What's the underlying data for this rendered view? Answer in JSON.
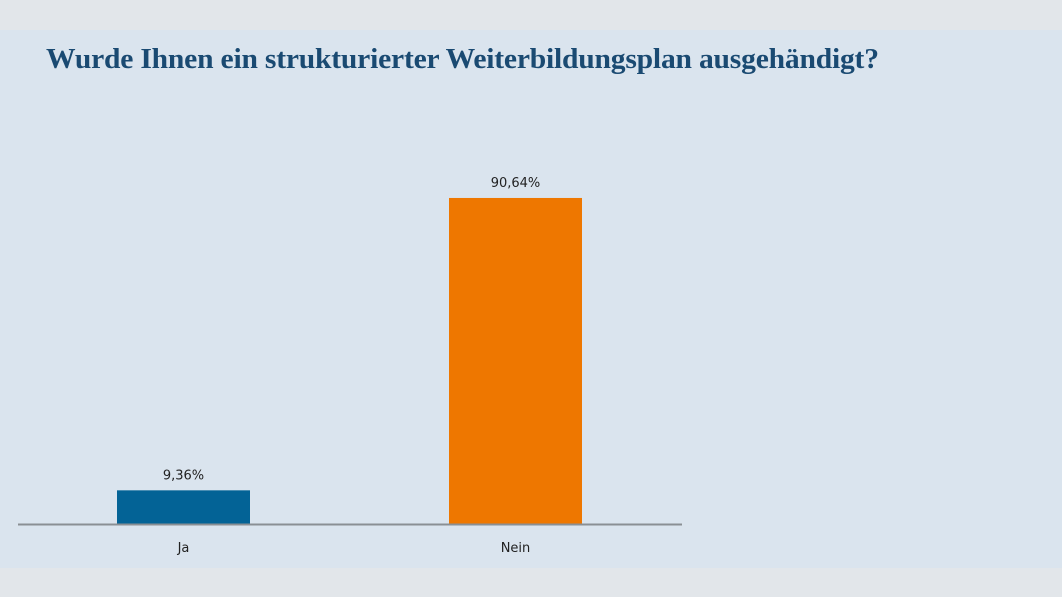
{
  "chart_data": {
    "type": "bar",
    "title": "Wurde Ihnen ein strukturierter Weiterbildungsplan ausgehändigt?",
    "categories": [
      "Ja",
      "Nein"
    ],
    "values": [
      9.36,
      90.64
    ],
    "value_labels": [
      "9,36%",
      "90,64%"
    ],
    "colors": [
      "#036396",
      "#ee7700"
    ],
    "xlabel": "",
    "ylabel": "",
    "ylim": [
      0,
      100
    ],
    "grid": false,
    "legend": "none"
  }
}
